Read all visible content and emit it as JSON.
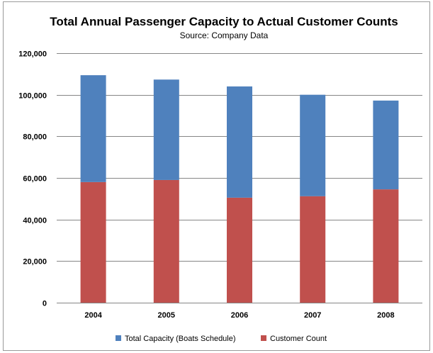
{
  "chart_data": {
    "type": "bar",
    "stacked": true,
    "title": "Total Annual Passenger Capacity to Actual Customer Counts",
    "subtitle": "Source: Company Data",
    "categories": [
      "2004",
      "2005",
      "2006",
      "2007",
      "2008"
    ],
    "series": [
      {
        "name": "Customer Count",
        "color": "#C0504D",
        "values": [
          58000,
          59000,
          50500,
          51200,
          54500
        ]
      },
      {
        "name": "Total Capacity (Boats Schedule)",
        "color": "#4F81BD",
        "values": [
          51400,
          48300,
          53500,
          48800,
          42700
        ]
      }
    ],
    "legend_order": [
      1,
      0
    ],
    "ylim": [
      0,
      120000
    ],
    "yticks": [
      0,
      20000,
      40000,
      60000,
      80000,
      100000,
      120000
    ],
    "ytick_labels": [
      "0",
      "20,000",
      "40,000",
      "60,000",
      "80,000",
      "100,000",
      "120,000"
    ],
    "grid": true,
    "legend_position": "bottom"
  }
}
